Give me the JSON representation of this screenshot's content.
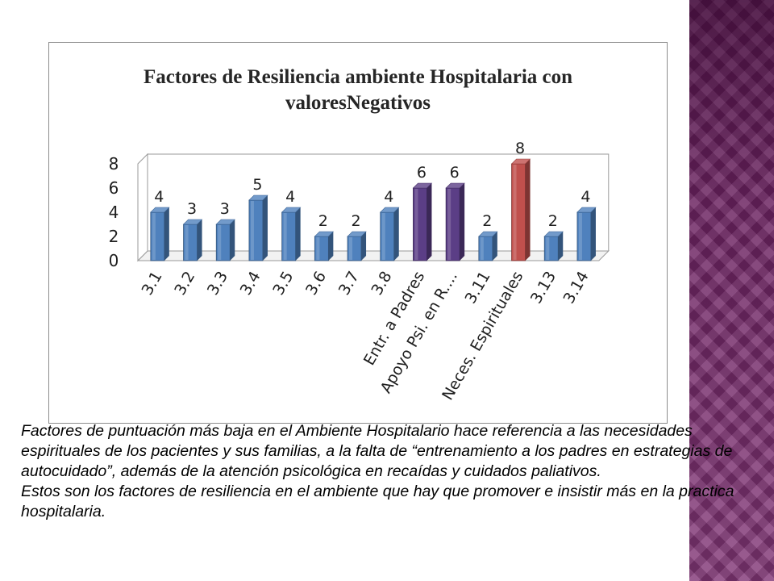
{
  "theme": {
    "bar_blue": "#4f81bd",
    "bar_purple": "#5b3e86",
    "bar_red": "#c0504d",
    "side_band": "#7a2a6e"
  },
  "chart_data": {
    "type": "bar",
    "title_lines": [
      "Factores de Resiliencia ambiente Hospitalaria con",
      "valoresNegativos"
    ],
    "categories": [
      "3.1",
      "3.2",
      "3.3",
      "3.4",
      "3.5",
      "3.6",
      "3.7",
      "3.8",
      "Entr. a Padres",
      "Apoyo Psi. en R....",
      "3.11",
      "Neces. Espirituales",
      "3.13",
      "3.14"
    ],
    "values": [
      4,
      3,
      3,
      5,
      4,
      2,
      2,
      4,
      6,
      6,
      2,
      8,
      2,
      4
    ],
    "bar_colors": [
      "blue",
      "blue",
      "blue",
      "blue",
      "blue",
      "blue",
      "blue",
      "blue",
      "purple",
      "purple",
      "blue",
      "red",
      "blue",
      "blue"
    ],
    "yticks": [
      0,
      2,
      4,
      6,
      8
    ],
    "ylim": [
      0,
      8
    ],
    "xlabel": "",
    "ylabel": "",
    "legend": "none",
    "grid": false,
    "style": "3d-bar"
  },
  "caption": {
    "paragraph1": "Factores de puntuación más baja en el Ambiente Hospitalario  hace referencia a las necesidades espirituales de los pacientes y sus familias, a la falta de “entrenamiento a los padres en estrategias de autocuidado”, además de la atención  psicológica en recaídas y cuidados paliativos.",
    "paragraph2": "Estos son los factores de resiliencia en el ambiente que hay que promover e insistir más en la practica hospitalaria."
  }
}
